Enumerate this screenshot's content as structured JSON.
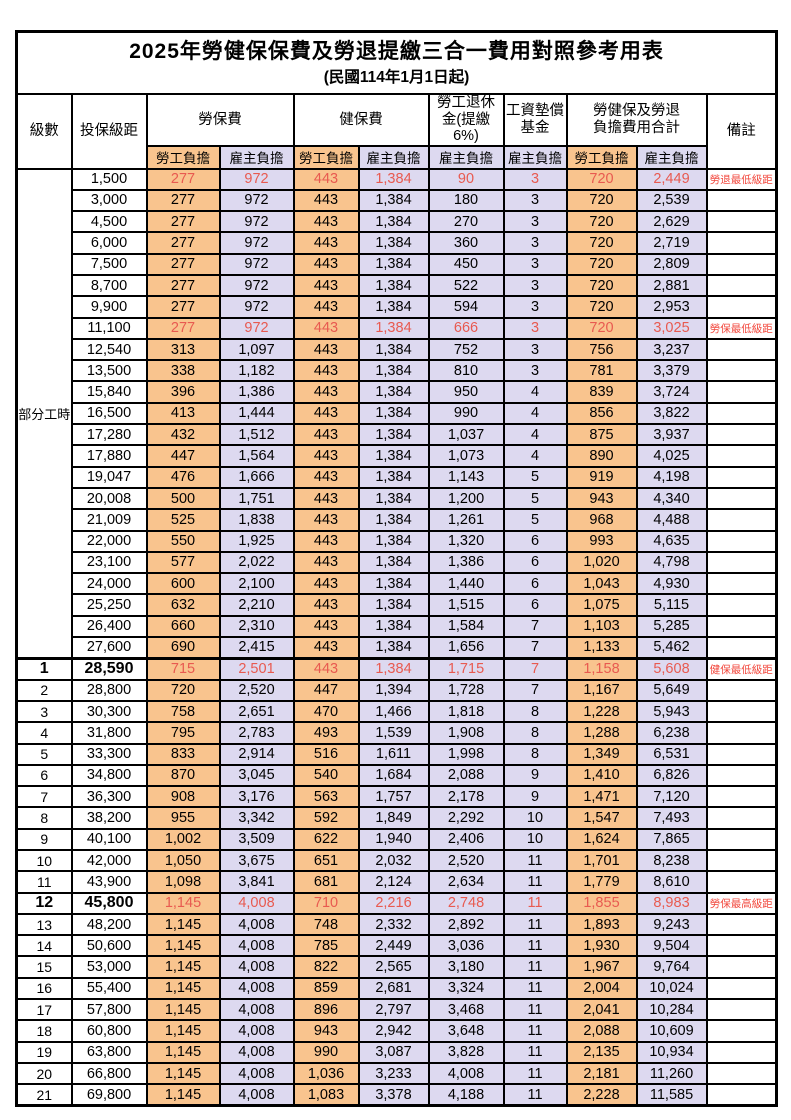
{
  "title": "2025年勞健保保費及勞退提繳三合一費用對照參考用表",
  "subtitle": "(民國114年1月1日起)",
  "colors": {
    "employee_col_bg": "#F9C48E",
    "employer_col_bg": "#DDD9F0",
    "highlight_text": "#E85A50",
    "remark_text": "#F2473C",
    "border": "#000000"
  },
  "header": {
    "level": "級數",
    "bracket": "投保級距",
    "labor_ins": "勞保費",
    "health_ins": "健保費",
    "pension": "勞工退休\n金(提繳6%)",
    "wage_arrears": "工資墊償\n基金",
    "total": "勞健保及勞退\n負擔費用合計",
    "remark": "備註",
    "employee": "勞工負擔",
    "employer": "雇主負擔"
  },
  "part_time_label": "部分工時",
  "part_time_rowspan": 23,
  "rows": [
    {
      "level": "",
      "bracket": "1,500",
      "v": [
        "277",
        "972",
        "443",
        "1,384",
        "90",
        "3",
        "720",
        "2,449"
      ],
      "remark": "勞退最低級距",
      "red": true,
      "bold": false,
      "section": false
    },
    {
      "level": "",
      "bracket": "3,000",
      "v": [
        "277",
        "972",
        "443",
        "1,384",
        "180",
        "3",
        "720",
        "2,539"
      ],
      "remark": "",
      "red": false,
      "bold": false,
      "section": false
    },
    {
      "level": "",
      "bracket": "4,500",
      "v": [
        "277",
        "972",
        "443",
        "1,384",
        "270",
        "3",
        "720",
        "2,629"
      ],
      "remark": "",
      "red": false,
      "bold": false,
      "section": false
    },
    {
      "level": "",
      "bracket": "6,000",
      "v": [
        "277",
        "972",
        "443",
        "1,384",
        "360",
        "3",
        "720",
        "2,719"
      ],
      "remark": "",
      "red": false,
      "bold": false,
      "section": false
    },
    {
      "level": "",
      "bracket": "7,500",
      "v": [
        "277",
        "972",
        "443",
        "1,384",
        "450",
        "3",
        "720",
        "2,809"
      ],
      "remark": "",
      "red": false,
      "bold": false,
      "section": false
    },
    {
      "level": "",
      "bracket": "8,700",
      "v": [
        "277",
        "972",
        "443",
        "1,384",
        "522",
        "3",
        "720",
        "2,881"
      ],
      "remark": "",
      "red": false,
      "bold": false,
      "section": false
    },
    {
      "level": "",
      "bracket": "9,900",
      "v": [
        "277",
        "972",
        "443",
        "1,384",
        "594",
        "3",
        "720",
        "2,953"
      ],
      "remark": "",
      "red": false,
      "bold": false,
      "section": false
    },
    {
      "level": "",
      "bracket": "11,100",
      "v": [
        "277",
        "972",
        "443",
        "1,384",
        "666",
        "3",
        "720",
        "3,025"
      ],
      "remark": "勞保最低級距",
      "red": true,
      "bold": false,
      "section": false
    },
    {
      "level": "",
      "bracket": "12,540",
      "v": [
        "313",
        "1,097",
        "443",
        "1,384",
        "752",
        "3",
        "756",
        "3,237"
      ],
      "remark": "",
      "red": false,
      "bold": false,
      "section": false
    },
    {
      "level": "",
      "bracket": "13,500",
      "v": [
        "338",
        "1,182",
        "443",
        "1,384",
        "810",
        "3",
        "781",
        "3,379"
      ],
      "remark": "",
      "red": false,
      "bold": false,
      "section": false
    },
    {
      "level": "",
      "bracket": "15,840",
      "v": [
        "396",
        "1,386",
        "443",
        "1,384",
        "950",
        "4",
        "839",
        "3,724"
      ],
      "remark": "",
      "red": false,
      "bold": false,
      "section": false
    },
    {
      "level": "",
      "bracket": "16,500",
      "v": [
        "413",
        "1,444",
        "443",
        "1,384",
        "990",
        "4",
        "856",
        "3,822"
      ],
      "remark": "",
      "red": false,
      "bold": false,
      "section": false
    },
    {
      "level": "",
      "bracket": "17,280",
      "v": [
        "432",
        "1,512",
        "443",
        "1,384",
        "1,037",
        "4",
        "875",
        "3,937"
      ],
      "remark": "",
      "red": false,
      "bold": false,
      "section": false
    },
    {
      "level": "",
      "bracket": "17,880",
      "v": [
        "447",
        "1,564",
        "443",
        "1,384",
        "1,073",
        "4",
        "890",
        "4,025"
      ],
      "remark": "",
      "red": false,
      "bold": false,
      "section": false
    },
    {
      "level": "",
      "bracket": "19,047",
      "v": [
        "476",
        "1,666",
        "443",
        "1,384",
        "1,143",
        "5",
        "919",
        "4,198"
      ],
      "remark": "",
      "red": false,
      "bold": false,
      "section": false
    },
    {
      "level": "",
      "bracket": "20,008",
      "v": [
        "500",
        "1,751",
        "443",
        "1,384",
        "1,200",
        "5",
        "943",
        "4,340"
      ],
      "remark": "",
      "red": false,
      "bold": false,
      "section": false
    },
    {
      "level": "",
      "bracket": "21,009",
      "v": [
        "525",
        "1,838",
        "443",
        "1,384",
        "1,261",
        "5",
        "968",
        "4,488"
      ],
      "remark": "",
      "red": false,
      "bold": false,
      "section": false
    },
    {
      "level": "",
      "bracket": "22,000",
      "v": [
        "550",
        "1,925",
        "443",
        "1,384",
        "1,320",
        "6",
        "993",
        "4,635"
      ],
      "remark": "",
      "red": false,
      "bold": false,
      "section": false
    },
    {
      "level": "",
      "bracket": "23,100",
      "v": [
        "577",
        "2,022",
        "443",
        "1,384",
        "1,386",
        "6",
        "1,020",
        "4,798"
      ],
      "remark": "",
      "red": false,
      "bold": false,
      "section": false
    },
    {
      "level": "",
      "bracket": "24,000",
      "v": [
        "600",
        "2,100",
        "443",
        "1,384",
        "1,440",
        "6",
        "1,043",
        "4,930"
      ],
      "remark": "",
      "red": false,
      "bold": false,
      "section": false
    },
    {
      "level": "",
      "bracket": "25,250",
      "v": [
        "632",
        "2,210",
        "443",
        "1,384",
        "1,515",
        "6",
        "1,075",
        "5,115"
      ],
      "remark": "",
      "red": false,
      "bold": false,
      "section": false
    },
    {
      "level": "",
      "bracket": "26,400",
      "v": [
        "660",
        "2,310",
        "443",
        "1,384",
        "1,584",
        "7",
        "1,103",
        "5,285"
      ],
      "remark": "",
      "red": false,
      "bold": false,
      "section": false
    },
    {
      "level": "",
      "bracket": "27,600",
      "v": [
        "690",
        "2,415",
        "443",
        "1,384",
        "1,656",
        "7",
        "1,133",
        "5,462"
      ],
      "remark": "",
      "red": false,
      "bold": false,
      "section": false
    },
    {
      "level": "1",
      "bracket": "28,590",
      "v": [
        "715",
        "2,501",
        "443",
        "1,384",
        "1,715",
        "7",
        "1,158",
        "5,608"
      ],
      "remark": "健保最低級距",
      "red": true,
      "bold": true,
      "section": true
    },
    {
      "level": "2",
      "bracket": "28,800",
      "v": [
        "720",
        "2,520",
        "447",
        "1,394",
        "1,728",
        "7",
        "1,167",
        "5,649"
      ],
      "remark": "",
      "red": false,
      "bold": false,
      "section": false
    },
    {
      "level": "3",
      "bracket": "30,300",
      "v": [
        "758",
        "2,651",
        "470",
        "1,466",
        "1,818",
        "8",
        "1,228",
        "5,943"
      ],
      "remark": "",
      "red": false,
      "bold": false,
      "section": false
    },
    {
      "level": "4",
      "bracket": "31,800",
      "v": [
        "795",
        "2,783",
        "493",
        "1,539",
        "1,908",
        "8",
        "1,288",
        "6,238"
      ],
      "remark": "",
      "red": false,
      "bold": false,
      "section": false
    },
    {
      "level": "5",
      "bracket": "33,300",
      "v": [
        "833",
        "2,914",
        "516",
        "1,611",
        "1,998",
        "8",
        "1,349",
        "6,531"
      ],
      "remark": "",
      "red": false,
      "bold": false,
      "section": false
    },
    {
      "level": "6",
      "bracket": "34,800",
      "v": [
        "870",
        "3,045",
        "540",
        "1,684",
        "2,088",
        "9",
        "1,410",
        "6,826"
      ],
      "remark": "",
      "red": false,
      "bold": false,
      "section": false
    },
    {
      "level": "7",
      "bracket": "36,300",
      "v": [
        "908",
        "3,176",
        "563",
        "1,757",
        "2,178",
        "9",
        "1,471",
        "7,120"
      ],
      "remark": "",
      "red": false,
      "bold": false,
      "section": false
    },
    {
      "level": "8",
      "bracket": "38,200",
      "v": [
        "955",
        "3,342",
        "592",
        "1,849",
        "2,292",
        "10",
        "1,547",
        "7,493"
      ],
      "remark": "",
      "red": false,
      "bold": false,
      "section": false
    },
    {
      "level": "9",
      "bracket": "40,100",
      "v": [
        "1,002",
        "3,509",
        "622",
        "1,940",
        "2,406",
        "10",
        "1,624",
        "7,865"
      ],
      "remark": "",
      "red": false,
      "bold": false,
      "section": false
    },
    {
      "level": "10",
      "bracket": "42,000",
      "v": [
        "1,050",
        "3,675",
        "651",
        "2,032",
        "2,520",
        "11",
        "1,701",
        "8,238"
      ],
      "remark": "",
      "red": false,
      "bold": false,
      "section": false
    },
    {
      "level": "11",
      "bracket": "43,900",
      "v": [
        "1,098",
        "3,841",
        "681",
        "2,124",
        "2,634",
        "11",
        "1,779",
        "8,610"
      ],
      "remark": "",
      "red": false,
      "bold": false,
      "section": false
    },
    {
      "level": "12",
      "bracket": "45,800",
      "v": [
        "1,145",
        "4,008",
        "710",
        "2,216",
        "2,748",
        "11",
        "1,855",
        "8,983"
      ],
      "remark": "勞保最高級距",
      "red": true,
      "bold": true,
      "section": false
    },
    {
      "level": "13",
      "bracket": "48,200",
      "v": [
        "1,145",
        "4,008",
        "748",
        "2,332",
        "2,892",
        "11",
        "1,893",
        "9,243"
      ],
      "remark": "",
      "red": false,
      "bold": false,
      "section": false
    },
    {
      "level": "14",
      "bracket": "50,600",
      "v": [
        "1,145",
        "4,008",
        "785",
        "2,449",
        "3,036",
        "11",
        "1,930",
        "9,504"
      ],
      "remark": "",
      "red": false,
      "bold": false,
      "section": false
    },
    {
      "level": "15",
      "bracket": "53,000",
      "v": [
        "1,145",
        "4,008",
        "822",
        "2,565",
        "3,180",
        "11",
        "1,967",
        "9,764"
      ],
      "remark": "",
      "red": false,
      "bold": false,
      "section": false
    },
    {
      "level": "16",
      "bracket": "55,400",
      "v": [
        "1,145",
        "4,008",
        "859",
        "2,681",
        "3,324",
        "11",
        "2,004",
        "10,024"
      ],
      "remark": "",
      "red": false,
      "bold": false,
      "section": false
    },
    {
      "level": "17",
      "bracket": "57,800",
      "v": [
        "1,145",
        "4,008",
        "896",
        "2,797",
        "3,468",
        "11",
        "2,041",
        "10,284"
      ],
      "remark": "",
      "red": false,
      "bold": false,
      "section": false
    },
    {
      "level": "18",
      "bracket": "60,800",
      "v": [
        "1,145",
        "4,008",
        "943",
        "2,942",
        "3,648",
        "11",
        "2,088",
        "10,609"
      ],
      "remark": "",
      "red": false,
      "bold": false,
      "section": false
    },
    {
      "level": "19",
      "bracket": "63,800",
      "v": [
        "1,145",
        "4,008",
        "990",
        "3,087",
        "3,828",
        "11",
        "2,135",
        "10,934"
      ],
      "remark": "",
      "red": false,
      "bold": false,
      "section": false
    },
    {
      "level": "20",
      "bracket": "66,800",
      "v": [
        "1,145",
        "4,008",
        "1,036",
        "3,233",
        "4,008",
        "11",
        "2,181",
        "11,260"
      ],
      "remark": "",
      "red": false,
      "bold": false,
      "section": false
    },
    {
      "level": "21",
      "bracket": "69,800",
      "v": [
        "1,145",
        "4,008",
        "1,083",
        "3,378",
        "4,188",
        "11",
        "2,228",
        "11,585"
      ],
      "remark": "",
      "red": false,
      "bold": false,
      "section": false
    }
  ]
}
